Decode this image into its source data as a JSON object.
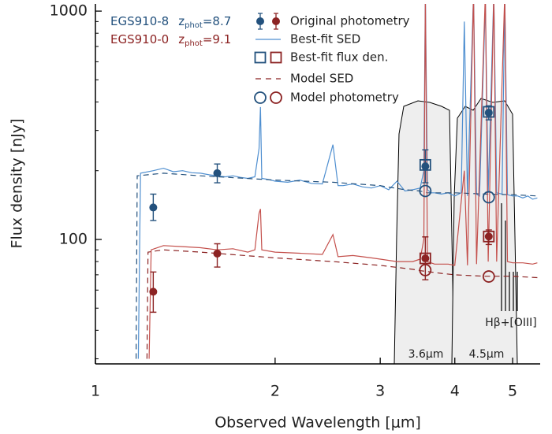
{
  "chart_data": {
    "type": "sed",
    "xscale": "log",
    "yscale": "log",
    "xlim": [
      1,
      5.56
    ],
    "ylim": [
      28.5,
      1075
    ],
    "xticks": [
      1,
      2,
      3,
      4,
      5
    ],
    "yticks": [
      100,
      1000
    ],
    "yticks_minor": [
      30,
      40,
      50,
      60,
      70,
      80,
      90,
      200,
      300,
      400,
      500,
      600,
      700,
      800,
      900
    ],
    "xlabel": "Observed Wavelength [μm]",
    "ylabel": "Flux density [nJy]",
    "legend": {
      "photometry": "Original photometry",
      "sed": "Best-fit SED",
      "bestfit_flux": "Best-fit flux den.",
      "model_sed": "Model SED",
      "model_photometry": "Model photometry"
    },
    "annotations": {
      "filter1": "3.6μm",
      "filter2": "4.5μm",
      "lines": "Hβ+[OIII]"
    },
    "series": [
      {
        "name": "EGS910-8",
        "z_label": "z",
        "z_sub": "phot",
        "z_text": "=8.7",
        "color": "#23517d",
        "sed_color": "#4f8fd0",
        "photometry": {
          "x": [
            1.25,
            1.6,
            3.57,
            4.56
          ],
          "values": [
            138,
            195,
            209,
            359
          ],
          "err_low": [
            17,
            18,
            32,
            25
          ],
          "err_high": [
            20,
            19,
            38,
            26
          ]
        },
        "bestfit_flux": {
          "x": [
            3.57,
            4.56
          ],
          "values": [
            212,
            362
          ]
        },
        "model_photometry": {
          "x": [
            3.57,
            4.56
          ],
          "values": [
            163,
            153
          ]
        },
        "sed": {
          "x": [
            1.18,
            1.19,
            1.25,
            1.3,
            1.35,
            1.4,
            1.45,
            1.5,
            1.55,
            1.6,
            1.65,
            1.7,
            1.75,
            1.8,
            1.85,
            1.88,
            1.89,
            1.9,
            1.95,
            2.0,
            2.1,
            2.2,
            2.3,
            2.4,
            2.5,
            2.55,
            2.6,
            2.7,
            2.8,
            2.9,
            3.0,
            3.1,
            3.2,
            3.3,
            3.4,
            3.5,
            3.55,
            3.57,
            3.6,
            3.65,
            3.7,
            3.8,
            3.9,
            4.0,
            4.1,
            4.15,
            4.2,
            4.3,
            4.35,
            4.4,
            4.5,
            4.55,
            4.65,
            4.7,
            4.8,
            4.85,
            4.9,
            5.0,
            5.1,
            5.2,
            5.3,
            5.4,
            5.5
          ],
          "values": [
            30,
            195,
            200,
            205,
            198,
            200,
            196,
            195,
            192,
            190,
            188,
            190,
            187,
            185,
            188,
            250,
            380,
            185,
            183,
            180,
            178,
            182,
            176,
            175,
            260,
            172,
            172,
            175,
            170,
            168,
            172,
            165,
            180,
            163,
            165,
            168,
            200,
            1200,
            165,
            160,
            160,
            158,
            160,
            155,
            160,
            900,
            155,
            1200,
            158,
            155,
            1100,
            160,
            1200,
            160,
            158,
            1200,
            157,
            155,
            155,
            152,
            155,
            150,
            152
          ]
        },
        "model_sed": {
          "x": [
            1.17,
            1.175,
            1.3,
            1.5,
            2.0,
            2.5,
            3.0,
            3.3,
            3.5,
            3.6,
            4.0,
            4.5,
            5.0,
            5.5
          ],
          "values": [
            30,
            190,
            195,
            190,
            182,
            178,
            172,
            165,
            163,
            160,
            160,
            158,
            157,
            155
          ]
        }
      },
      {
        "name": "EGS910-0",
        "z_label": "z",
        "z_sub": "phot",
        "z_text": "=9.1",
        "color": "#8c2323",
        "sed_color": "#c4504c",
        "photometry": {
          "x": [
            1.25,
            1.6,
            3.57,
            4.56
          ],
          "values": [
            59,
            86.7,
            82.6,
            103
          ],
          "err_low": [
            11,
            11,
            16,
            8
          ],
          "err_high": [
            13,
            9,
            20,
            7
          ]
        },
        "bestfit_flux": {
          "x": [
            3.57,
            4.56
          ],
          "values": [
            82.6,
            103
          ]
        },
        "model_photometry": {
          "x": [
            3.57,
            4.56
          ],
          "values": [
            73.4,
            68.8
          ]
        },
        "sed": {
          "x": [
            1.23,
            1.24,
            1.3,
            1.4,
            1.5,
            1.6,
            1.7,
            1.8,
            1.85,
            1.88,
            1.89,
            1.9,
            2.0,
            2.2,
            2.4,
            2.5,
            2.55,
            2.7,
            2.9,
            3.0,
            3.2,
            3.4,
            3.5,
            3.55,
            3.57,
            3.6,
            3.7,
            3.9,
            4.0,
            4.15,
            4.2,
            4.3,
            4.35,
            4.5,
            4.55,
            4.65,
            4.7,
            4.85,
            4.9,
            5.0,
            5.2,
            5.4,
            5.5
          ],
          "values": [
            30,
            90,
            94,
            93,
            92,
            90,
            91,
            88,
            90,
            130,
            136,
            90,
            88,
            87,
            86,
            105,
            84,
            85,
            83,
            82,
            80,
            80,
            82,
            100,
            1200,
            80,
            78,
            78,
            77,
            200,
            77,
            1200,
            78,
            1200,
            80,
            1200,
            80,
            1200,
            80,
            79,
            79,
            78,
            79
          ]
        },
        "model_sed": {
          "x": [
            1.22,
            1.225,
            1.3,
            1.5,
            2.0,
            2.5,
            3.0,
            3.4,
            3.5,
            3.8,
            4.0,
            4.5,
            5.0,
            5.5
          ],
          "values": [
            30,
            88,
            90,
            88,
            83,
            80,
            77,
            74,
            73,
            71,
            70,
            69,
            69,
            68
          ]
        }
      }
    ]
  }
}
